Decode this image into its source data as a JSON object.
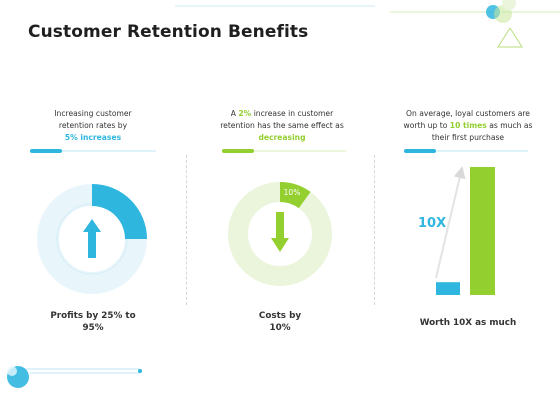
{
  "title": "Customer Retention Benefits",
  "colors": {
    "blue": "#2fb6df",
    "green": "#93cf2f",
    "light_blue": "#e8f6fc",
    "light_green": "#eaf5dc"
  },
  "col1": {
    "caption_line1": "Increasing customer",
    "caption_line2": "retention rates by",
    "highlight": "5% increases",
    "donut_fraction": 0.25,
    "label_line1": "Profits by 25% to",
    "label_line2": "95%"
  },
  "col2": {
    "caption_pre": "A ",
    "caption_highlight1": "2%",
    "caption_post1": " increase in customer",
    "caption_line2": "retention has the same effect as",
    "highlight": "decreasing",
    "donut_fraction": 0.1,
    "donut_label": "10%",
    "label_line1": "Costs by",
    "label_line2": "10%"
  },
  "col3": {
    "caption_line1": "On average, loyal customers are",
    "caption_pre": "worth up to ",
    "caption_highlight": "10 times",
    "caption_post": " as much as",
    "caption_line3": "their first purchase",
    "multiplier": "10X",
    "bar_small": 1,
    "bar_large": 10,
    "label": "Worth 10X as much"
  }
}
